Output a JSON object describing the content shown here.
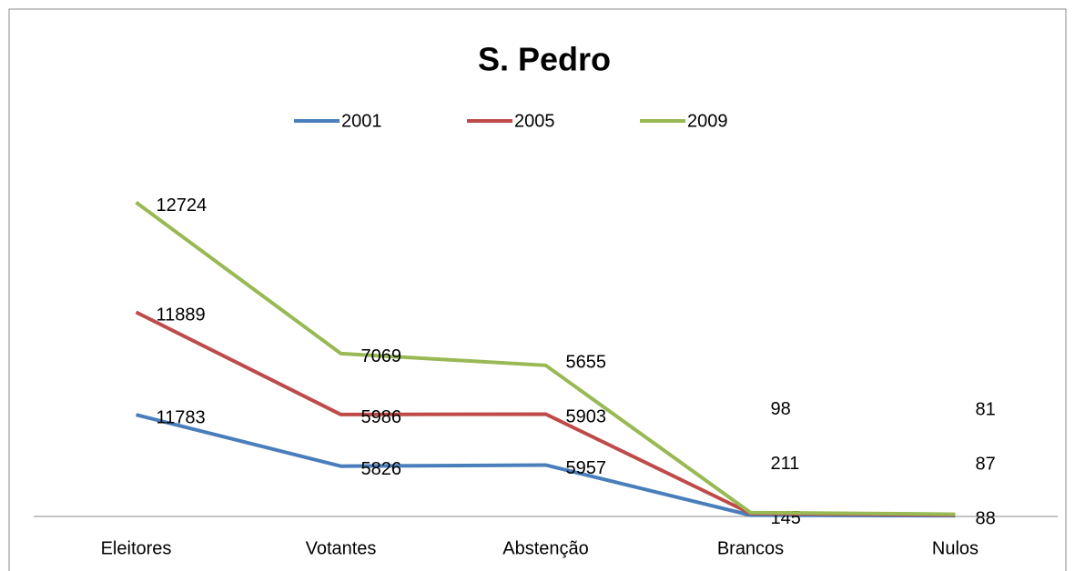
{
  "chart_data": {
    "type": "line",
    "stacked": true,
    "title": "S. Pedro",
    "categories": [
      "Eleitores",
      "Votantes",
      "Abstenção",
      "Brancos",
      "Nulos"
    ],
    "series": [
      {
        "name": "2001",
        "color": "#4a7ebb",
        "values": [
          11783,
          5826,
          5957,
          145,
          88
        ]
      },
      {
        "name": "2005",
        "color": "#be4b48",
        "values": [
          11889,
          5986,
          5903,
          211,
          87
        ]
      },
      {
        "name": "2009",
        "color": "#98b954",
        "values": [
          12724,
          7069,
          5655,
          98,
          81
        ]
      }
    ],
    "ylim": [
      0,
      43000
    ],
    "legend": "top"
  }
}
